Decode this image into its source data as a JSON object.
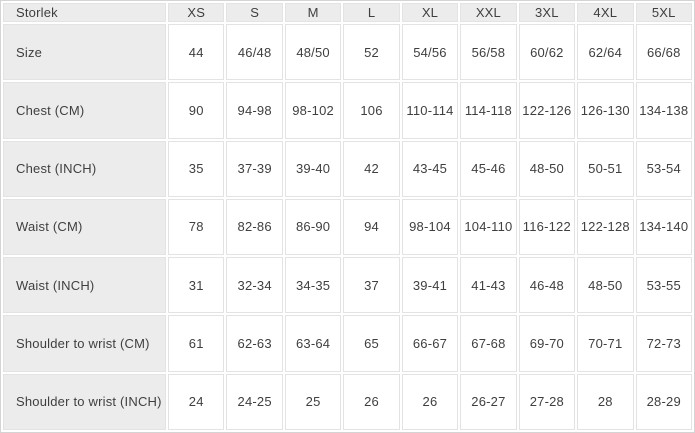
{
  "chart_data": {
    "type": "table",
    "columns": [
      "Storlek",
      "XS",
      "S",
      "M",
      "L",
      "XL",
      "XXL",
      "3XL",
      "4XL",
      "5XL"
    ],
    "rows": [
      {
        "label": "Size",
        "values": [
          "44",
          "46/48",
          "48/50",
          "52",
          "54/56",
          "56/58",
          "60/62",
          "62/64",
          "66/68"
        ]
      },
      {
        "label": "Chest (CM)",
        "values": [
          "90",
          "94-98",
          "98-102",
          "106",
          "110-114",
          "114-118",
          "122-126",
          "126-130",
          "134-138"
        ]
      },
      {
        "label": "Chest (INCH)",
        "values": [
          "35",
          "37-39",
          "39-40",
          "42",
          "43-45",
          "45-46",
          "48-50",
          "50-51",
          "53-54"
        ]
      },
      {
        "label": "Waist (CM)",
        "values": [
          "78",
          "82-86",
          "86-90",
          "94",
          "98-104",
          "104-110",
          "116-122",
          "122-128",
          "134-140"
        ]
      },
      {
        "label": "Waist (INCH)",
        "values": [
          "31",
          "32-34",
          "34-35",
          "37",
          "39-41",
          "41-43",
          "46-48",
          "48-50",
          "53-55"
        ]
      },
      {
        "label": "Shoulder to wrist (CM)",
        "values": [
          "61",
          "62-63",
          "63-64",
          "65",
          "66-67",
          "67-68",
          "69-70",
          "70-71",
          "72-73"
        ]
      },
      {
        "label": "Shoulder to wrist (INCH)",
        "values": [
          "24",
          "24-25",
          "25",
          "26",
          "26",
          "26-27",
          "27-28",
          "28",
          "28-29"
        ]
      }
    ],
    "layout": {
      "grid": true,
      "header_row": true,
      "label_column": true
    }
  },
  "colors": {
    "header_bg": "#ececec",
    "cell_bg": "#ffffff",
    "grid_line": "#e3e3e3",
    "outer_border": "#d4d4d4",
    "text": "#3f3f3f"
  }
}
